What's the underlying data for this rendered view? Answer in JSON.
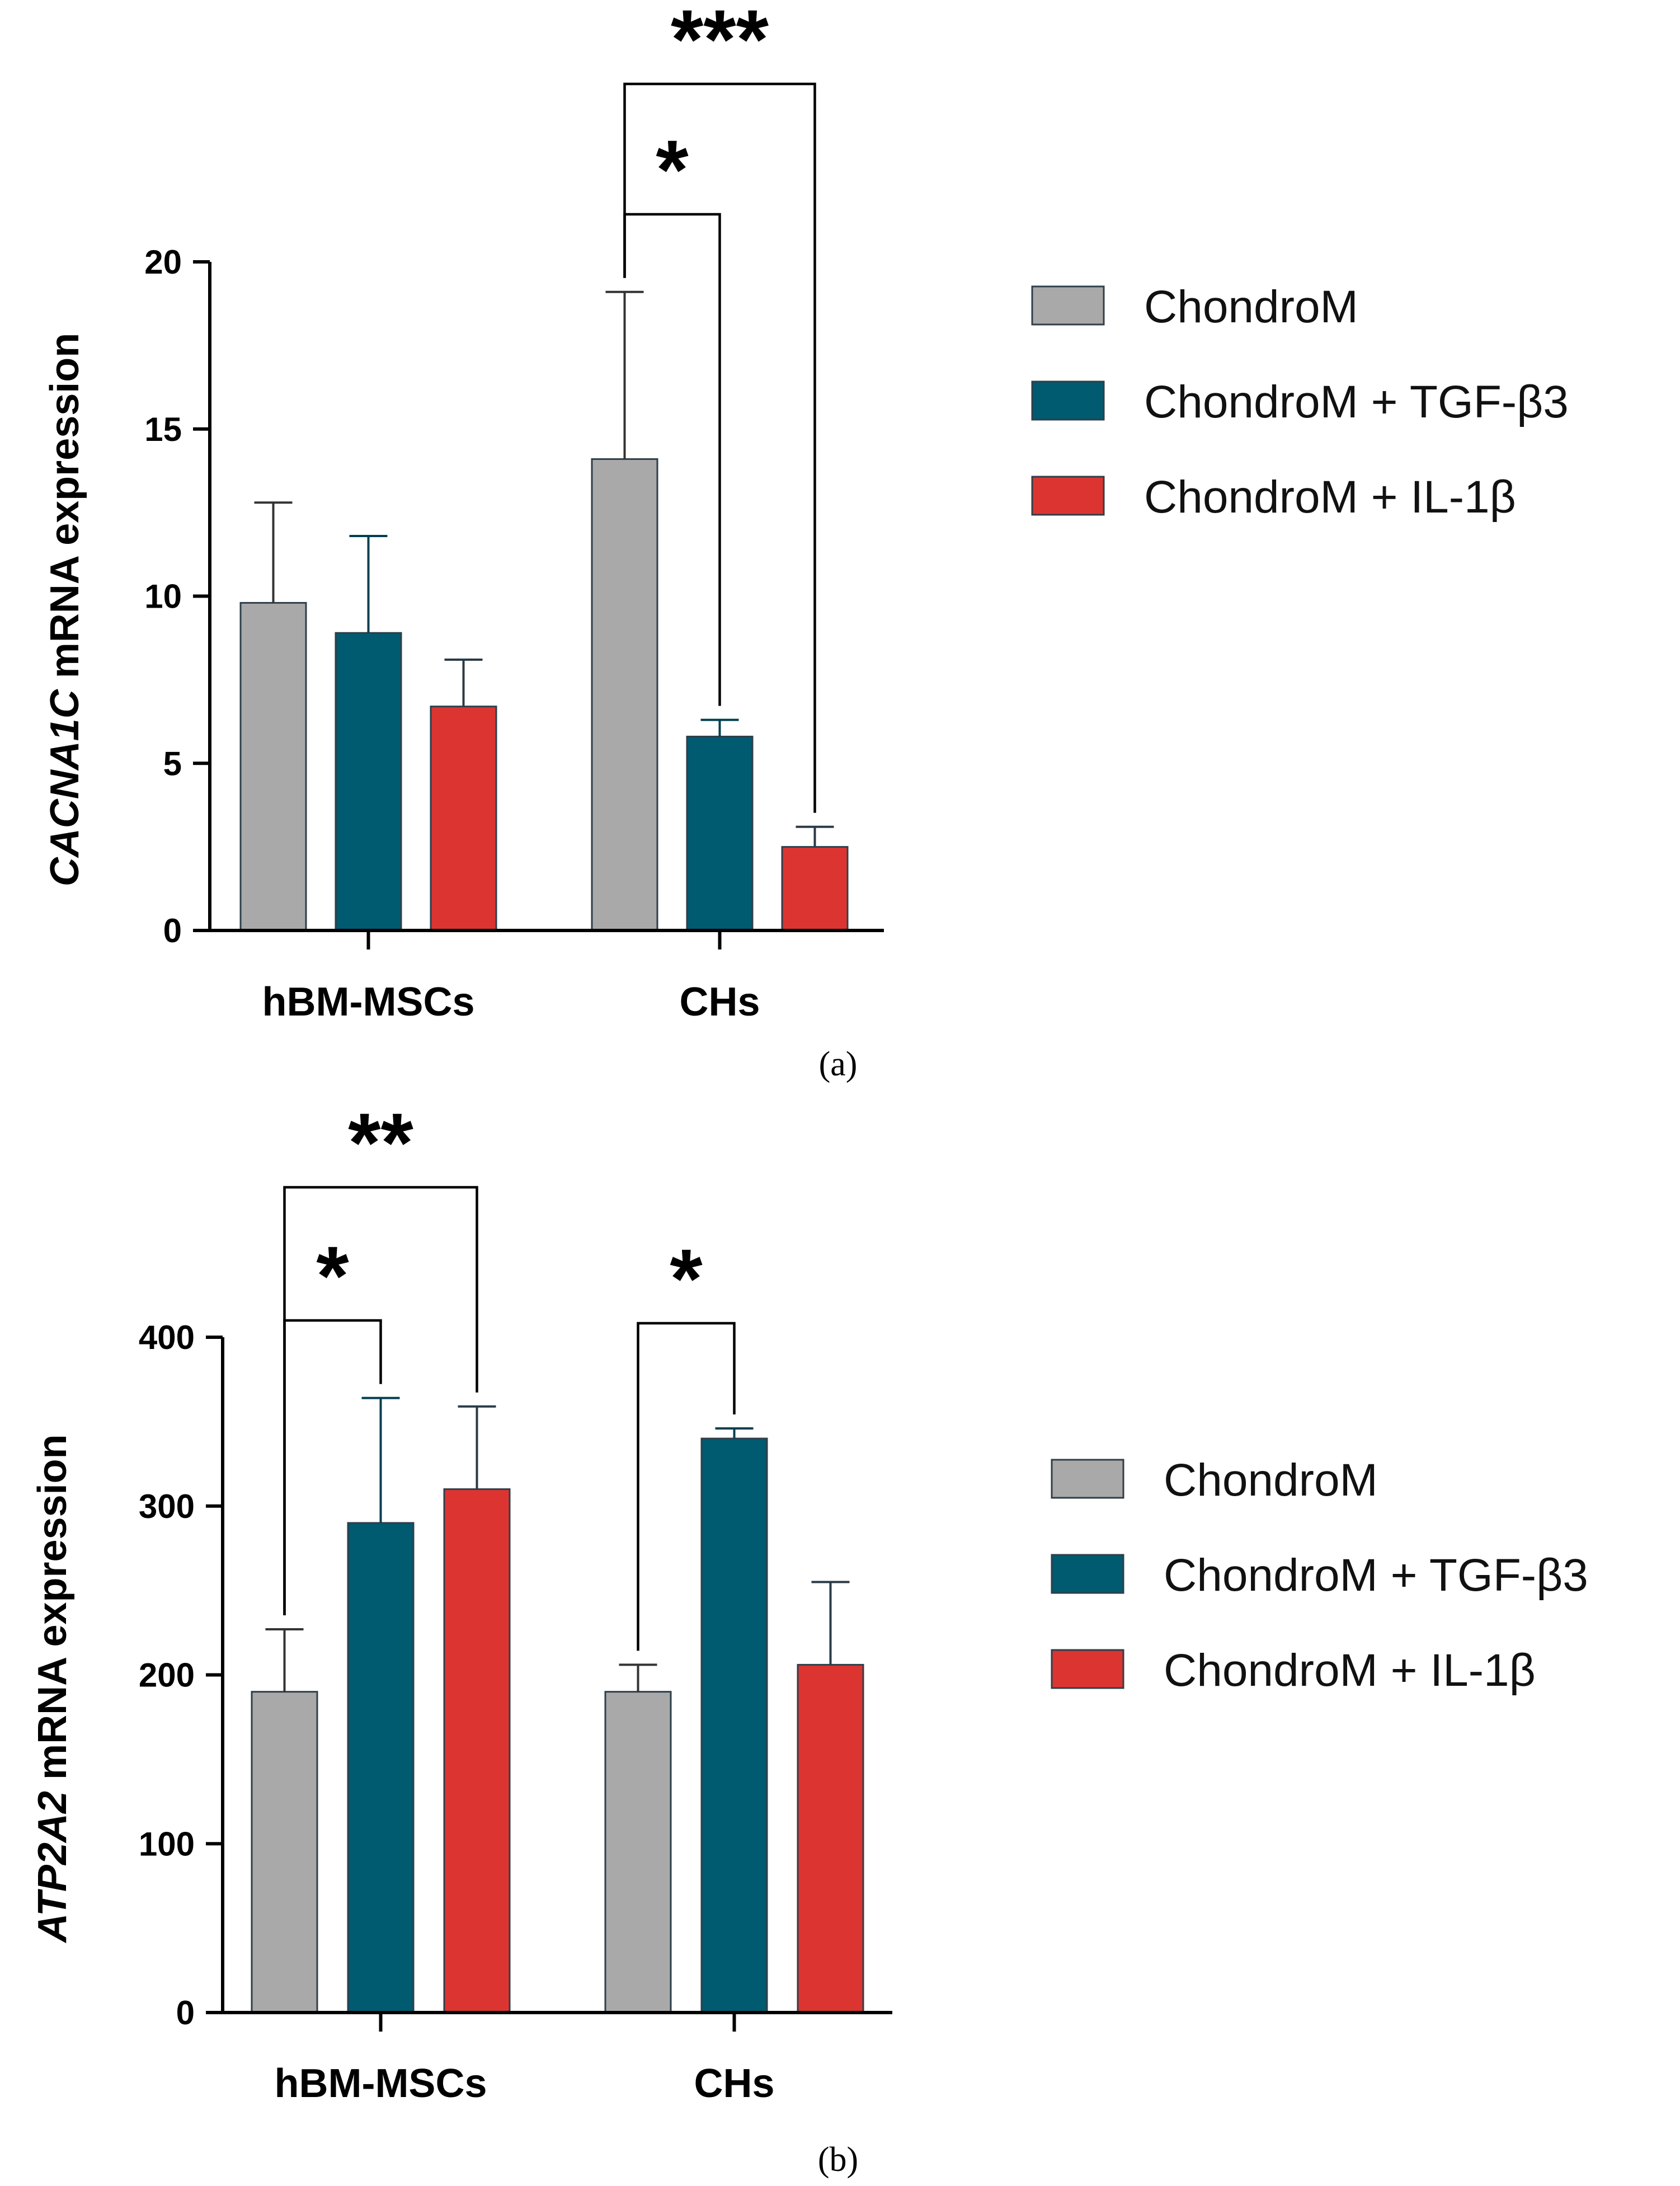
{
  "chart_data": [
    {
      "panel": "(a)",
      "type": "bar",
      "ylabel_gene": "CACNA1C",
      "ylabel_rest": " mRNA expression",
      "ylim": [
        0,
        20
      ],
      "yticks": [
        0,
        5,
        10,
        15,
        20
      ],
      "categories": [
        "hBM-MSCs",
        "CHs"
      ],
      "series": [
        {
          "name": "ChondroM",
          "values": [
            9.8,
            14.1
          ],
          "errors": [
            3.0,
            5.0
          ]
        },
        {
          "name": "ChondroM + TGF-β3",
          "values": [
            8.9,
            5.8
          ],
          "errors": [
            2.9,
            0.5
          ]
        },
        {
          "name": "ChondroM + IL-1β",
          "values": [
            6.7,
            2.5
          ],
          "errors": [
            1.4,
            0.6
          ]
        }
      ],
      "significance": [
        {
          "category": 1,
          "from": 0,
          "to": 1,
          "label": "*"
        },
        {
          "category": 1,
          "from": 0,
          "to": 2,
          "label": "***"
        }
      ]
    },
    {
      "panel": "(b)",
      "type": "bar",
      "ylabel_gene": "ATP2A2",
      "ylabel_rest": " mRNA expression",
      "ylim": [
        0,
        400
      ],
      "yticks": [
        0,
        100,
        200,
        300,
        400
      ],
      "categories": [
        "hBM-MSCs",
        "CHs"
      ],
      "series": [
        {
          "name": "ChondroM",
          "values": [
            190,
            190
          ],
          "errors": [
            37,
            16
          ]
        },
        {
          "name": "ChondroM + TGF-β3",
          "values": [
            290,
            340
          ],
          "errors": [
            74,
            6
          ]
        },
        {
          "name": "ChondroM + IL-1β",
          "values": [
            310,
            206
          ],
          "errors": [
            49,
            49
          ]
        }
      ],
      "significance": [
        {
          "category": 0,
          "from": 0,
          "to": 1,
          "label": "*"
        },
        {
          "category": 0,
          "from": 0,
          "to": 2,
          "label": "**"
        },
        {
          "category": 1,
          "from": 0,
          "to": 1,
          "label": "*"
        }
      ]
    }
  ],
  "colors": {
    "ChondroM": "#a9a9a9",
    "ChondroM + TGF-β3": "#005a70",
    "ChondroM + IL-1β": "#dc3531",
    "bar_edge": "#2f3f4a",
    "error_gray": "#333333",
    "error_teal": "#003f50",
    "error_red": "#2b3a46"
  }
}
